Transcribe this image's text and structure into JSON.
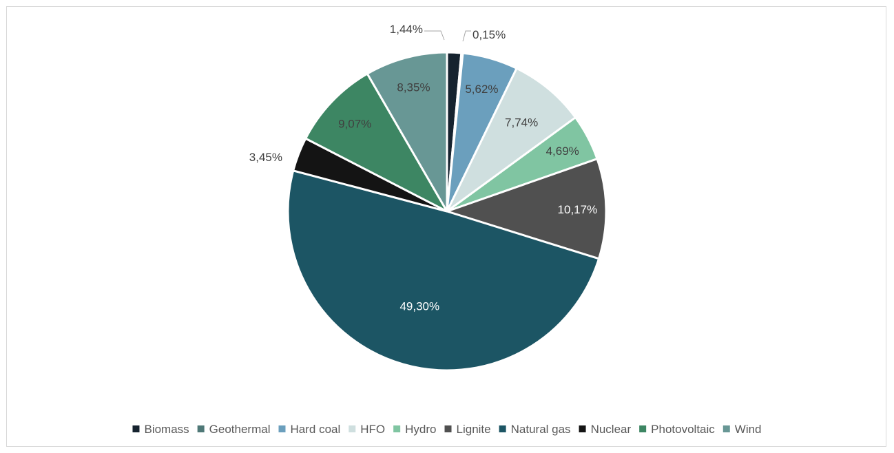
{
  "chart_data": {
    "type": "pie",
    "title": "",
    "legend_position": "bottom",
    "slices": [
      {
        "name": "Biomass",
        "value": 1.44,
        "label": "1,44%",
        "color": "#16232f",
        "label_color": "#404040"
      },
      {
        "name": "Geothermal",
        "value": 0.15,
        "label": "0,15%",
        "color": "#4f7877",
        "label_color": "#404040"
      },
      {
        "name": "Hard coal",
        "value": 5.62,
        "label": "5,62%",
        "color": "#6b9fbd",
        "label_color": "#404040"
      },
      {
        "name": "HFO",
        "value": 7.74,
        "label": "7,74%",
        "color": "#cfdfdf",
        "label_color": "#404040"
      },
      {
        "name": "Hydro",
        "value": 4.69,
        "label": "4,69%",
        "color": "#80c5a2",
        "label_color": "#404040"
      },
      {
        "name": "Lignite",
        "value": 10.17,
        "label": "10,17%",
        "color": "#505050",
        "label_color": "#ffffff"
      },
      {
        "name": "Natural gas",
        "value": 49.3,
        "label": "49,30%",
        "color": "#1c5564",
        "label_color": "#ffffff"
      },
      {
        "name": "Nuclear",
        "value": 3.45,
        "label": "3,45%",
        "color": "#141414",
        "label_color": "#404040"
      },
      {
        "name": "Photovoltaic",
        "value": 9.07,
        "label": "9,07%",
        "color": "#3d8663",
        "label_color": "#404040"
      },
      {
        "name": "Wind",
        "value": 8.35,
        "label": "8,35%",
        "color": "#689795",
        "label_color": "#404040"
      }
    ]
  }
}
